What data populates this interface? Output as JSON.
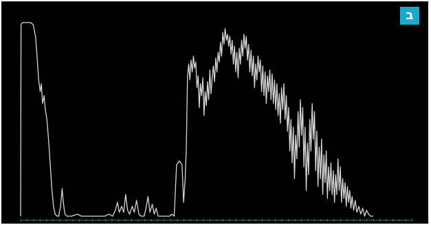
{
  "badge": {
    "label": "ב"
  },
  "colors": {
    "background": "#000000",
    "trace": "#d8d8d8",
    "baseline": "#2f7f6f",
    "badge": "#1ba9cf"
  },
  "chart_data": {
    "type": "line",
    "title": "",
    "xlabel": "",
    "ylabel": "",
    "xlim": [
      0,
      100
    ],
    "ylim": [
      0,
      100
    ],
    "grid": false,
    "legend": "none",
    "series": [
      {
        "points": [
          [
            0,
            1
          ],
          [
            0.1,
            98
          ],
          [
            0.5,
            99
          ],
          [
            1.5,
            99
          ],
          [
            2.5,
            99
          ],
          [
            3.2,
            98
          ],
          [
            3.8,
            92
          ],
          [
            4.2,
            82
          ],
          [
            4.6,
            70
          ],
          [
            5,
            64
          ],
          [
            5.3,
            68
          ],
          [
            5.6,
            58
          ],
          [
            6,
            62
          ],
          [
            6.3,
            55
          ],
          [
            6.7,
            50
          ],
          [
            7.2,
            38
          ],
          [
            7.6,
            26
          ],
          [
            8,
            14
          ],
          [
            8.4,
            6
          ],
          [
            8.8,
            2
          ],
          [
            9.3,
            1
          ],
          [
            9.7,
            1
          ],
          [
            10.2,
            6
          ],
          [
            10.6,
            15
          ],
          [
            10.9,
            8
          ],
          [
            11.3,
            2
          ],
          [
            11.8,
            1
          ],
          [
            13,
            1
          ],
          [
            14.5,
            2
          ],
          [
            15.5,
            1
          ],
          [
            17,
            1
          ],
          [
            18.5,
            1
          ],
          [
            20,
            1
          ],
          [
            21.5,
            1
          ],
          [
            22.5,
            2
          ],
          [
            23.5,
            1
          ],
          [
            24.2,
            4
          ],
          [
            24.7,
            8
          ],
          [
            25.2,
            3
          ],
          [
            25.8,
            6
          ],
          [
            26.3,
            3
          ],
          [
            26.8,
            12
          ],
          [
            27.3,
            4
          ],
          [
            27.8,
            2
          ],
          [
            28.5,
            6
          ],
          [
            29,
            3
          ],
          [
            29.6,
            9
          ],
          [
            30.2,
            2
          ],
          [
            30.7,
            1
          ],
          [
            31.5,
            1
          ],
          [
            32,
            5
          ],
          [
            32.5,
            11
          ],
          [
            33,
            3
          ],
          [
            33.6,
            7
          ],
          [
            34.1,
            2
          ],
          [
            34.6,
            5
          ],
          [
            35.1,
            1
          ],
          [
            36,
            1
          ],
          [
            37,
            1
          ],
          [
            38,
            1
          ],
          [
            38.6,
            2
          ],
          [
            39.2,
            1
          ],
          [
            39.8,
            27
          ],
          [
            40.5,
            29
          ],
          [
            41.2,
            27
          ],
          [
            41.6,
            8
          ],
          [
            42,
            20
          ],
          [
            42.3,
            36
          ],
          [
            42.6,
            72
          ],
          [
            42.9,
            78
          ],
          [
            43.2,
            70
          ],
          [
            43.5,
            80
          ],
          [
            43.8,
            74
          ],
          [
            44.1,
            82
          ],
          [
            44.4,
            76
          ],
          [
            44.7,
            79
          ],
          [
            45,
            66
          ],
          [
            45.3,
            72
          ],
          [
            45.6,
            56
          ],
          [
            45.9,
            68
          ],
          [
            46.2,
            62
          ],
          [
            46.5,
            71
          ],
          [
            46.8,
            52
          ],
          [
            47.1,
            64
          ],
          [
            47.4,
            57
          ],
          [
            47.7,
            69
          ],
          [
            48,
            60
          ],
          [
            48.3,
            75
          ],
          [
            48.6,
            63
          ],
          [
            48.9,
            71
          ],
          [
            49.2,
            77
          ],
          [
            49.5,
            69
          ],
          [
            49.8,
            81
          ],
          [
            50.1,
            74
          ],
          [
            50.4,
            84
          ],
          [
            50.7,
            79
          ],
          [
            51,
            89
          ],
          [
            51.3,
            82
          ],
          [
            51.6,
            94
          ],
          [
            51.9,
            88
          ],
          [
            52.2,
            96
          ],
          [
            52.5,
            90
          ],
          [
            52.8,
            93
          ],
          [
            53.1,
            87
          ],
          [
            53.4,
            92
          ],
          [
            53.7,
            83
          ],
          [
            54,
            90
          ],
          [
            54.3,
            78
          ],
          [
            54.6,
            87
          ],
          [
            54.9,
            74
          ],
          [
            55.2,
            84
          ],
          [
            55.5,
            71
          ],
          [
            55.8,
            86
          ],
          [
            56.1,
            78
          ],
          [
            56.4,
            90
          ],
          [
            56.7,
            82
          ],
          [
            57,
            93
          ],
          [
            57.3,
            86
          ],
          [
            57.6,
            92
          ],
          [
            57.9,
            80
          ],
          [
            58.2,
            88
          ],
          [
            58.5,
            74
          ],
          [
            58.8,
            85
          ],
          [
            59.1,
            72
          ],
          [
            59.4,
            82
          ],
          [
            59.7,
            66
          ],
          [
            60,
            78
          ],
          [
            60.3,
            70
          ],
          [
            60.6,
            82
          ],
          [
            60.9,
            74
          ],
          [
            61.2,
            80
          ],
          [
            61.5,
            64
          ],
          [
            61.8,
            77
          ],
          [
            62.1,
            62
          ],
          [
            62.4,
            74
          ],
          [
            62.7,
            58
          ],
          [
            63,
            72
          ],
          [
            63.3,
            64
          ],
          [
            63.6,
            75
          ],
          [
            63.9,
            60
          ],
          [
            64.2,
            73
          ],
          [
            64.5,
            58
          ],
          [
            64.8,
            70
          ],
          [
            65.1,
            55
          ],
          [
            65.4,
            68
          ],
          [
            65.7,
            52
          ],
          [
            66,
            63
          ],
          [
            66.3,
            48
          ],
          [
            66.6,
            66
          ],
          [
            66.9,
            55
          ],
          [
            67.2,
            68
          ],
          [
            67.5,
            50
          ],
          [
            67.8,
            62
          ],
          [
            68.1,
            44
          ],
          [
            68.4,
            56
          ],
          [
            68.7,
            34
          ],
          [
            69,
            50
          ],
          [
            69.3,
            28
          ],
          [
            69.6,
            46
          ],
          [
            69.9,
            20
          ],
          [
            70.2,
            42
          ],
          [
            70.5,
            30
          ],
          [
            70.8,
            54
          ],
          [
            71.1,
            36
          ],
          [
            71.4,
            60
          ],
          [
            71.7,
            42
          ],
          [
            72,
            56
          ],
          [
            72.3,
            26
          ],
          [
            72.6,
            46
          ],
          [
            72.9,
            14
          ],
          [
            73.2,
            38
          ],
          [
            73.5,
            22
          ],
          [
            73.8,
            50
          ],
          [
            74.1,
            34
          ],
          [
            74.4,
            58
          ],
          [
            74.7,
            40
          ],
          [
            75,
            54
          ],
          [
            75.3,
            24
          ],
          [
            75.6,
            44
          ],
          [
            75.9,
            16
          ],
          [
            76.2,
            36
          ],
          [
            76.5,
            20
          ],
          [
            76.8,
            40
          ],
          [
            77.1,
            12
          ],
          [
            77.4,
            32
          ],
          [
            77.7,
            18
          ],
          [
            78,
            34
          ],
          [
            78.3,
            10
          ],
          [
            78.6,
            26
          ],
          [
            78.9,
            14
          ],
          [
            79.2,
            28
          ],
          [
            79.5,
            12
          ],
          [
            79.8,
            24
          ],
          [
            80.1,
            8
          ],
          [
            80.4,
            22
          ],
          [
            80.7,
            12
          ],
          [
            81,
            30
          ],
          [
            81.3,
            14
          ],
          [
            81.6,
            26
          ],
          [
            81.9,
            8
          ],
          [
            82.2,
            20
          ],
          [
            82.5,
            10
          ],
          [
            82.8,
            18
          ],
          [
            83.1,
            6
          ],
          [
            83.4,
            16
          ],
          [
            83.7,
            8
          ],
          [
            84,
            14
          ],
          [
            84.3,
            5
          ],
          [
            84.6,
            11
          ],
          [
            85,
            4
          ],
          [
            85.4,
            9
          ],
          [
            85.8,
            3
          ],
          [
            86.3,
            6
          ],
          [
            86.8,
            2
          ],
          [
            87.3,
            5
          ],
          [
            87.8,
            1
          ],
          [
            88.3,
            4
          ],
          [
            88.8,
            2
          ],
          [
            89.3,
            1
          ],
          [
            90,
            1
          ]
        ]
      }
    ]
  }
}
